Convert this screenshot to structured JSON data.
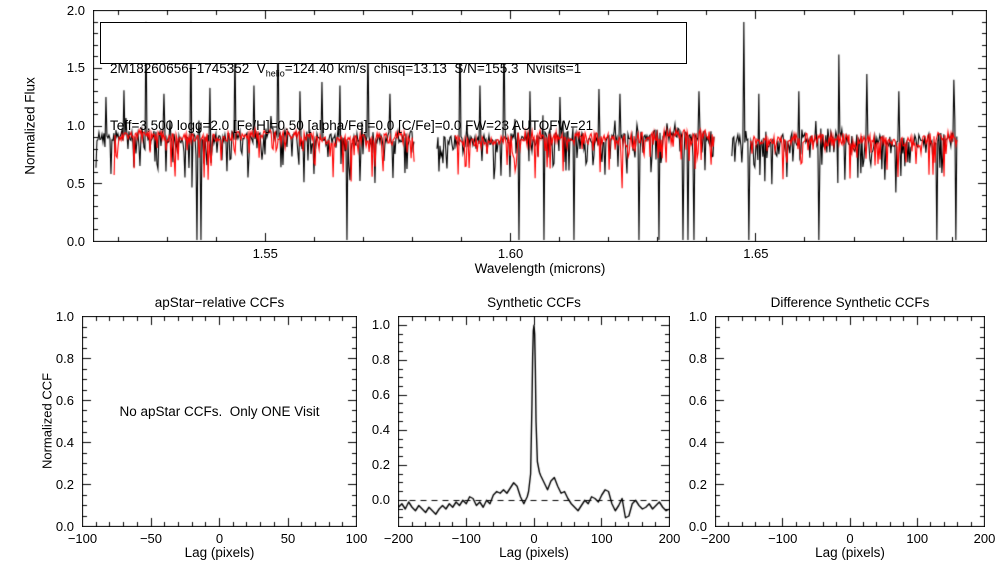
{
  "colors": {
    "background": "#ffffff",
    "axis": "#000000",
    "observed_spectrum": "#000000",
    "synthetic_spectrum": "#ff0000"
  },
  "chart_data": [
    {
      "type": "line",
      "id": "spectrum-panel",
      "title": "",
      "xlabel": "Wavelength (microns)",
      "ylabel": "Normalized Flux",
      "xlim": [
        1.515,
        1.697
      ],
      "ylim": [
        0.0,
        2.0
      ],
      "xticks": {
        "labels": [
          "1.55",
          "1.60",
          "1.65"
        ],
        "values": [
          1.55,
          1.6,
          1.65
        ],
        "minor_step": 0.01
      },
      "yticks": {
        "labels": [
          "0.0",
          "0.5",
          "1.0",
          "1.5",
          "2.0"
        ],
        "values": [
          0,
          0.5,
          1,
          1.5,
          2
        ],
        "minor_step": 0.1
      },
      "grid": false,
      "annotation": {
        "line1_prefix": "2M18260656−1745352  V",
        "line1_sub": "helio",
        "line1_suffix": "=124.40 km/s  chisq=13.13  S/N=155.3  Nvisits=1",
        "line2": "Teff=3,500 logg=2.0 [Fe/H]=0.50 [alpha/Fe]=0.0 [C/Fe]=0.0 FW=23 AUTOFW=21"
      },
      "segments": [
        [
          1.5155,
          1.5805
        ],
        [
          1.585,
          1.6415
        ],
        [
          1.6451,
          1.691
        ]
      ],
      "series": [
        {
          "name": "observed",
          "color": "#000000",
          "baseline": 0.9,
          "noise": 0.05,
          "dip_prob": 0.45,
          "dip_max": 0.48,
          "up_prob": 0.05,
          "seed": 42
        },
        {
          "name": "synthetic",
          "color": "#ff0000",
          "baseline": 0.9,
          "noise": 0.045,
          "dip_prob": 0.4,
          "dip_max": 0.44,
          "up_prob": 0.0,
          "seed": 7,
          "start_offset": 0.0037
        }
      ],
      "features": {
        "up_spikes": [
          [
            1.5175,
            1.25
          ],
          [
            1.5213,
            1.31
          ],
          [
            1.5256,
            1.9
          ],
          [
            1.5293,
            1.28
          ],
          [
            1.5348,
            1.9
          ],
          [
            1.5388,
            1.33
          ],
          [
            1.5439,
            1.7
          ],
          [
            1.5476,
            1.35
          ],
          [
            1.5526,
            1.9
          ],
          [
            1.5571,
            1.3
          ],
          [
            1.5616,
            1.38
          ],
          [
            1.5652,
            1.35
          ],
          [
            1.5667,
            1.92
          ],
          [
            1.5709,
            1.75
          ],
          [
            1.5754,
            1.28
          ],
          [
            1.5896,
            1.9
          ],
          [
            1.5937,
            1.35
          ],
          [
            1.5986,
            1.85
          ],
          [
            1.6039,
            1.3
          ],
          [
            1.61,
            1.25
          ],
          [
            1.6181,
            1.32
          ],
          [
            1.6222,
            1.28
          ],
          [
            1.6262,
            1.9
          ],
          [
            1.6303,
            1.2
          ],
          [
            1.6384,
            1.3
          ],
          [
            1.6476,
            1.9
          ],
          [
            1.6506,
            1.28
          ],
          [
            1.6587,
            1.3
          ],
          [
            1.6669,
            1.62
          ],
          [
            1.6726,
            1.45
          ],
          [
            1.6791,
            1.3
          ],
          [
            1.6868,
            1.75
          ],
          [
            1.6903,
            1.4
          ]
        ],
        "down_lines": [
          1.536,
          1.537,
          1.5667,
          1.5805,
          1.6018,
          1.6069,
          1.613,
          1.6262,
          1.6303,
          1.6352,
          1.6362,
          1.6374,
          1.6486,
          1.6628,
          1.6868,
          1.6907
        ]
      }
    },
    {
      "type": "line",
      "id": "apstar-ccf-panel",
      "title": "apStar−relative CCFs",
      "xlabel": "Lag (pixels)",
      "ylabel": "Normalized CCF",
      "note": "No apStar CCFs.  Only ONE Visit",
      "xlim": [
        -100,
        100
      ],
      "ylim": [
        0.0,
        1.0
      ],
      "xticks": {
        "labels": [
          "−100",
          "−50",
          "0",
          "50",
          "100"
        ],
        "values": [
          -100,
          -50,
          0,
          50,
          100
        ],
        "minor_step": 10
      },
      "yticks": {
        "labels": [
          "0.0",
          "0.2",
          "0.4",
          "0.6",
          "0.8",
          "1.0"
        ],
        "values": [
          0,
          0.2,
          0.4,
          0.6,
          0.8,
          1.0
        ],
        "minor_step": 0.05
      },
      "grid": false,
      "points": []
    },
    {
      "type": "line",
      "id": "synthetic-ccf-panel",
      "title": "Synthetic CCFs",
      "xlabel": "Lag (pixels)",
      "ylabel": "",
      "xlim": [
        -200,
        200
      ],
      "ylim": [
        -0.15,
        1.05
      ],
      "xticks": {
        "labels": [
          "−200",
          "−100",
          "0",
          "100",
          "200"
        ],
        "values": [
          -200,
          -100,
          0,
          100,
          200
        ],
        "minor_step": 20
      },
      "yticks": {
        "labels": [
          "0.0",
          "0.2",
          "0.4",
          "0.6",
          "0.8",
          "1.0"
        ],
        "values": [
          0,
          0.2,
          0.4,
          0.6,
          0.8,
          1.0
        ],
        "minor_step": 0.05
      },
      "grid": false,
      "zero_line_dashed": true,
      "points": [
        [
          -200,
          -0.04
        ],
        [
          -195,
          -0.02
        ],
        [
          -190,
          -0.05
        ],
        [
          -185,
          -0.01
        ],
        [
          -180,
          -0.04
        ],
        [
          -175,
          -0.06
        ],
        [
          -170,
          -0.03
        ],
        [
          -165,
          -0.05
        ],
        [
          -160,
          -0.07
        ],
        [
          -155,
          -0.04
        ],
        [
          -150,
          -0.06
        ],
        [
          -145,
          -0.08
        ],
        [
          -140,
          -0.05
        ],
        [
          -135,
          -0.03
        ],
        [
          -130,
          -0.05
        ],
        [
          -125,
          -0.02
        ],
        [
          -120,
          -0.04
        ],
        [
          -115,
          -0.01
        ],
        [
          -110,
          -0.03
        ],
        [
          -105,
          0.0
        ],
        [
          -100,
          -0.02
        ],
        [
          -95,
          0.02
        ],
        [
          -90,
          0.01
        ],
        [
          -85,
          -0.03
        ],
        [
          -80,
          -0.01
        ],
        [
          -75,
          -0.04
        ],
        [
          -70,
          0.0
        ],
        [
          -65,
          -0.02
        ],
        [
          -60,
          0.03
        ],
        [
          -55,
          0.05
        ],
        [
          -50,
          0.04
        ],
        [
          -45,
          0.06
        ],
        [
          -40,
          0.04
        ],
        [
          -35,
          0.07
        ],
        [
          -30,
          0.1
        ],
        [
          -25,
          0.08
        ],
        [
          -20,
          0.02
        ],
        [
          -15,
          -0.02
        ],
        [
          -10,
          0.02
        ],
        [
          -8,
          0.05
        ],
        [
          -5,
          0.15
        ],
        [
          -3,
          0.55
        ],
        [
          -2,
          0.82
        ],
        [
          -1,
          0.97
        ],
        [
          0,
          1.0
        ],
        [
          1,
          0.95
        ],
        [
          2,
          0.75
        ],
        [
          3,
          0.45
        ],
        [
          5,
          0.22
        ],
        [
          8,
          0.16
        ],
        [
          10,
          0.14
        ],
        [
          15,
          0.1
        ],
        [
          20,
          0.06
        ],
        [
          25,
          0.11
        ],
        [
          30,
          0.13
        ],
        [
          35,
          0.08
        ],
        [
          40,
          0.04
        ],
        [
          45,
          0.05
        ],
        [
          50,
          0.01
        ],
        [
          55,
          -0.02
        ],
        [
          60,
          -0.04
        ],
        [
          65,
          -0.06
        ],
        [
          70,
          -0.03
        ],
        [
          75,
          0.0
        ],
        [
          80,
          -0.02
        ],
        [
          85,
          0.02
        ],
        [
          90,
          0.01
        ],
        [
          95,
          -0.01
        ],
        [
          100,
          0.03
        ],
        [
          105,
          0.06
        ],
        [
          110,
          0.05
        ],
        [
          115,
          -0.02
        ],
        [
          120,
          -0.06
        ],
        [
          125,
          -0.03
        ],
        [
          130,
          0.01
        ],
        [
          135,
          -0.1
        ],
        [
          140,
          -0.09
        ],
        [
          145,
          -0.02
        ],
        [
          150,
          0.0
        ],
        [
          155,
          -0.03
        ],
        [
          160,
          -0.05
        ],
        [
          165,
          -0.04
        ],
        [
          170,
          -0.02
        ],
        [
          175,
          -0.05
        ],
        [
          180,
          -0.03
        ],
        [
          185,
          -0.01
        ],
        [
          190,
          -0.04
        ],
        [
          195,
          -0.06
        ],
        [
          200,
          -0.05
        ]
      ]
    },
    {
      "type": "line",
      "id": "difference-ccf-panel",
      "title": "Difference Synthetic CCFs",
      "xlabel": "Lag (pixels)",
      "ylabel": "",
      "xlim": [
        -200,
        200
      ],
      "ylim": [
        0.0,
        1.0
      ],
      "xticks": {
        "labels": [
          "−200",
          "−100",
          "0",
          "100",
          "200"
        ],
        "values": [
          -200,
          -100,
          0,
          100,
          200
        ],
        "minor_step": 20
      },
      "yticks": {
        "labels": [
          "0.0",
          "0.2",
          "0.4",
          "0.6",
          "0.8",
          "1.0"
        ],
        "values": [
          0,
          0.2,
          0.4,
          0.6,
          0.8,
          1.0
        ],
        "minor_step": 0.05
      },
      "grid": false,
      "points": []
    }
  ]
}
